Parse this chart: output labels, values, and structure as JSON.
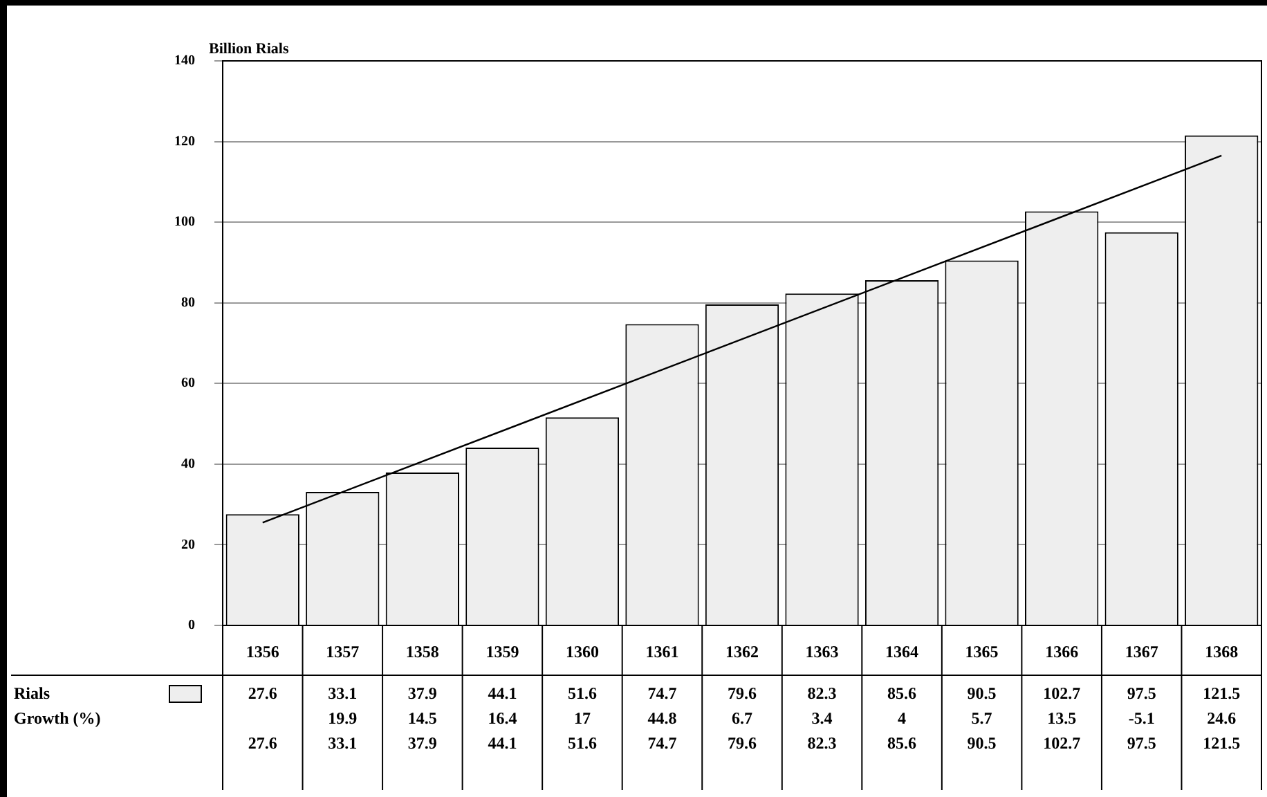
{
  "chart_data": {
    "type": "bar",
    "ylabel": "Billion Rials",
    "categories": [
      "1356",
      "1357",
      "1358",
      "1359",
      "1360",
      "1361",
      "1362",
      "1363",
      "1364",
      "1365",
      "1366",
      "1367",
      "1368"
    ],
    "series": [
      {
        "name": "Rials",
        "color": "#eeeeee",
        "values": [
          27.6,
          33.1,
          37.9,
          44.1,
          51.6,
          74.7,
          79.6,
          82.3,
          85.6,
          90.5,
          102.7,
          97.5,
          121.5
        ],
        "value_labels": [
          "27.6",
          "33.1",
          "37.9",
          "44.1",
          "51.6",
          "74.7",
          "79.6",
          "82.3",
          "85.6",
          "90.5",
          "102.7",
          "97.5",
          "121.5"
        ]
      },
      {
        "type": "line",
        "color": "#000000",
        "values": [
          25.5,
          null,
          null,
          null,
          null,
          null,
          null,
          null,
          null,
          null,
          null,
          null,
          116.5
        ]
      }
    ],
    "ylim": [
      0,
      140
    ],
    "yticks": [
      0,
      20,
      40,
      60,
      80,
      100,
      120,
      140
    ],
    "grid": "y",
    "legend": "bottom left",
    "marker": "none",
    "annotations": [
      "Growth (%)",
      "19.9",
      "14.5",
      "16.4",
      "17",
      "44.8",
      "6.7",
      "3.4",
      "4",
      "5.7",
      "13.5",
      "-5.1",
      "24.6"
    ]
  }
}
